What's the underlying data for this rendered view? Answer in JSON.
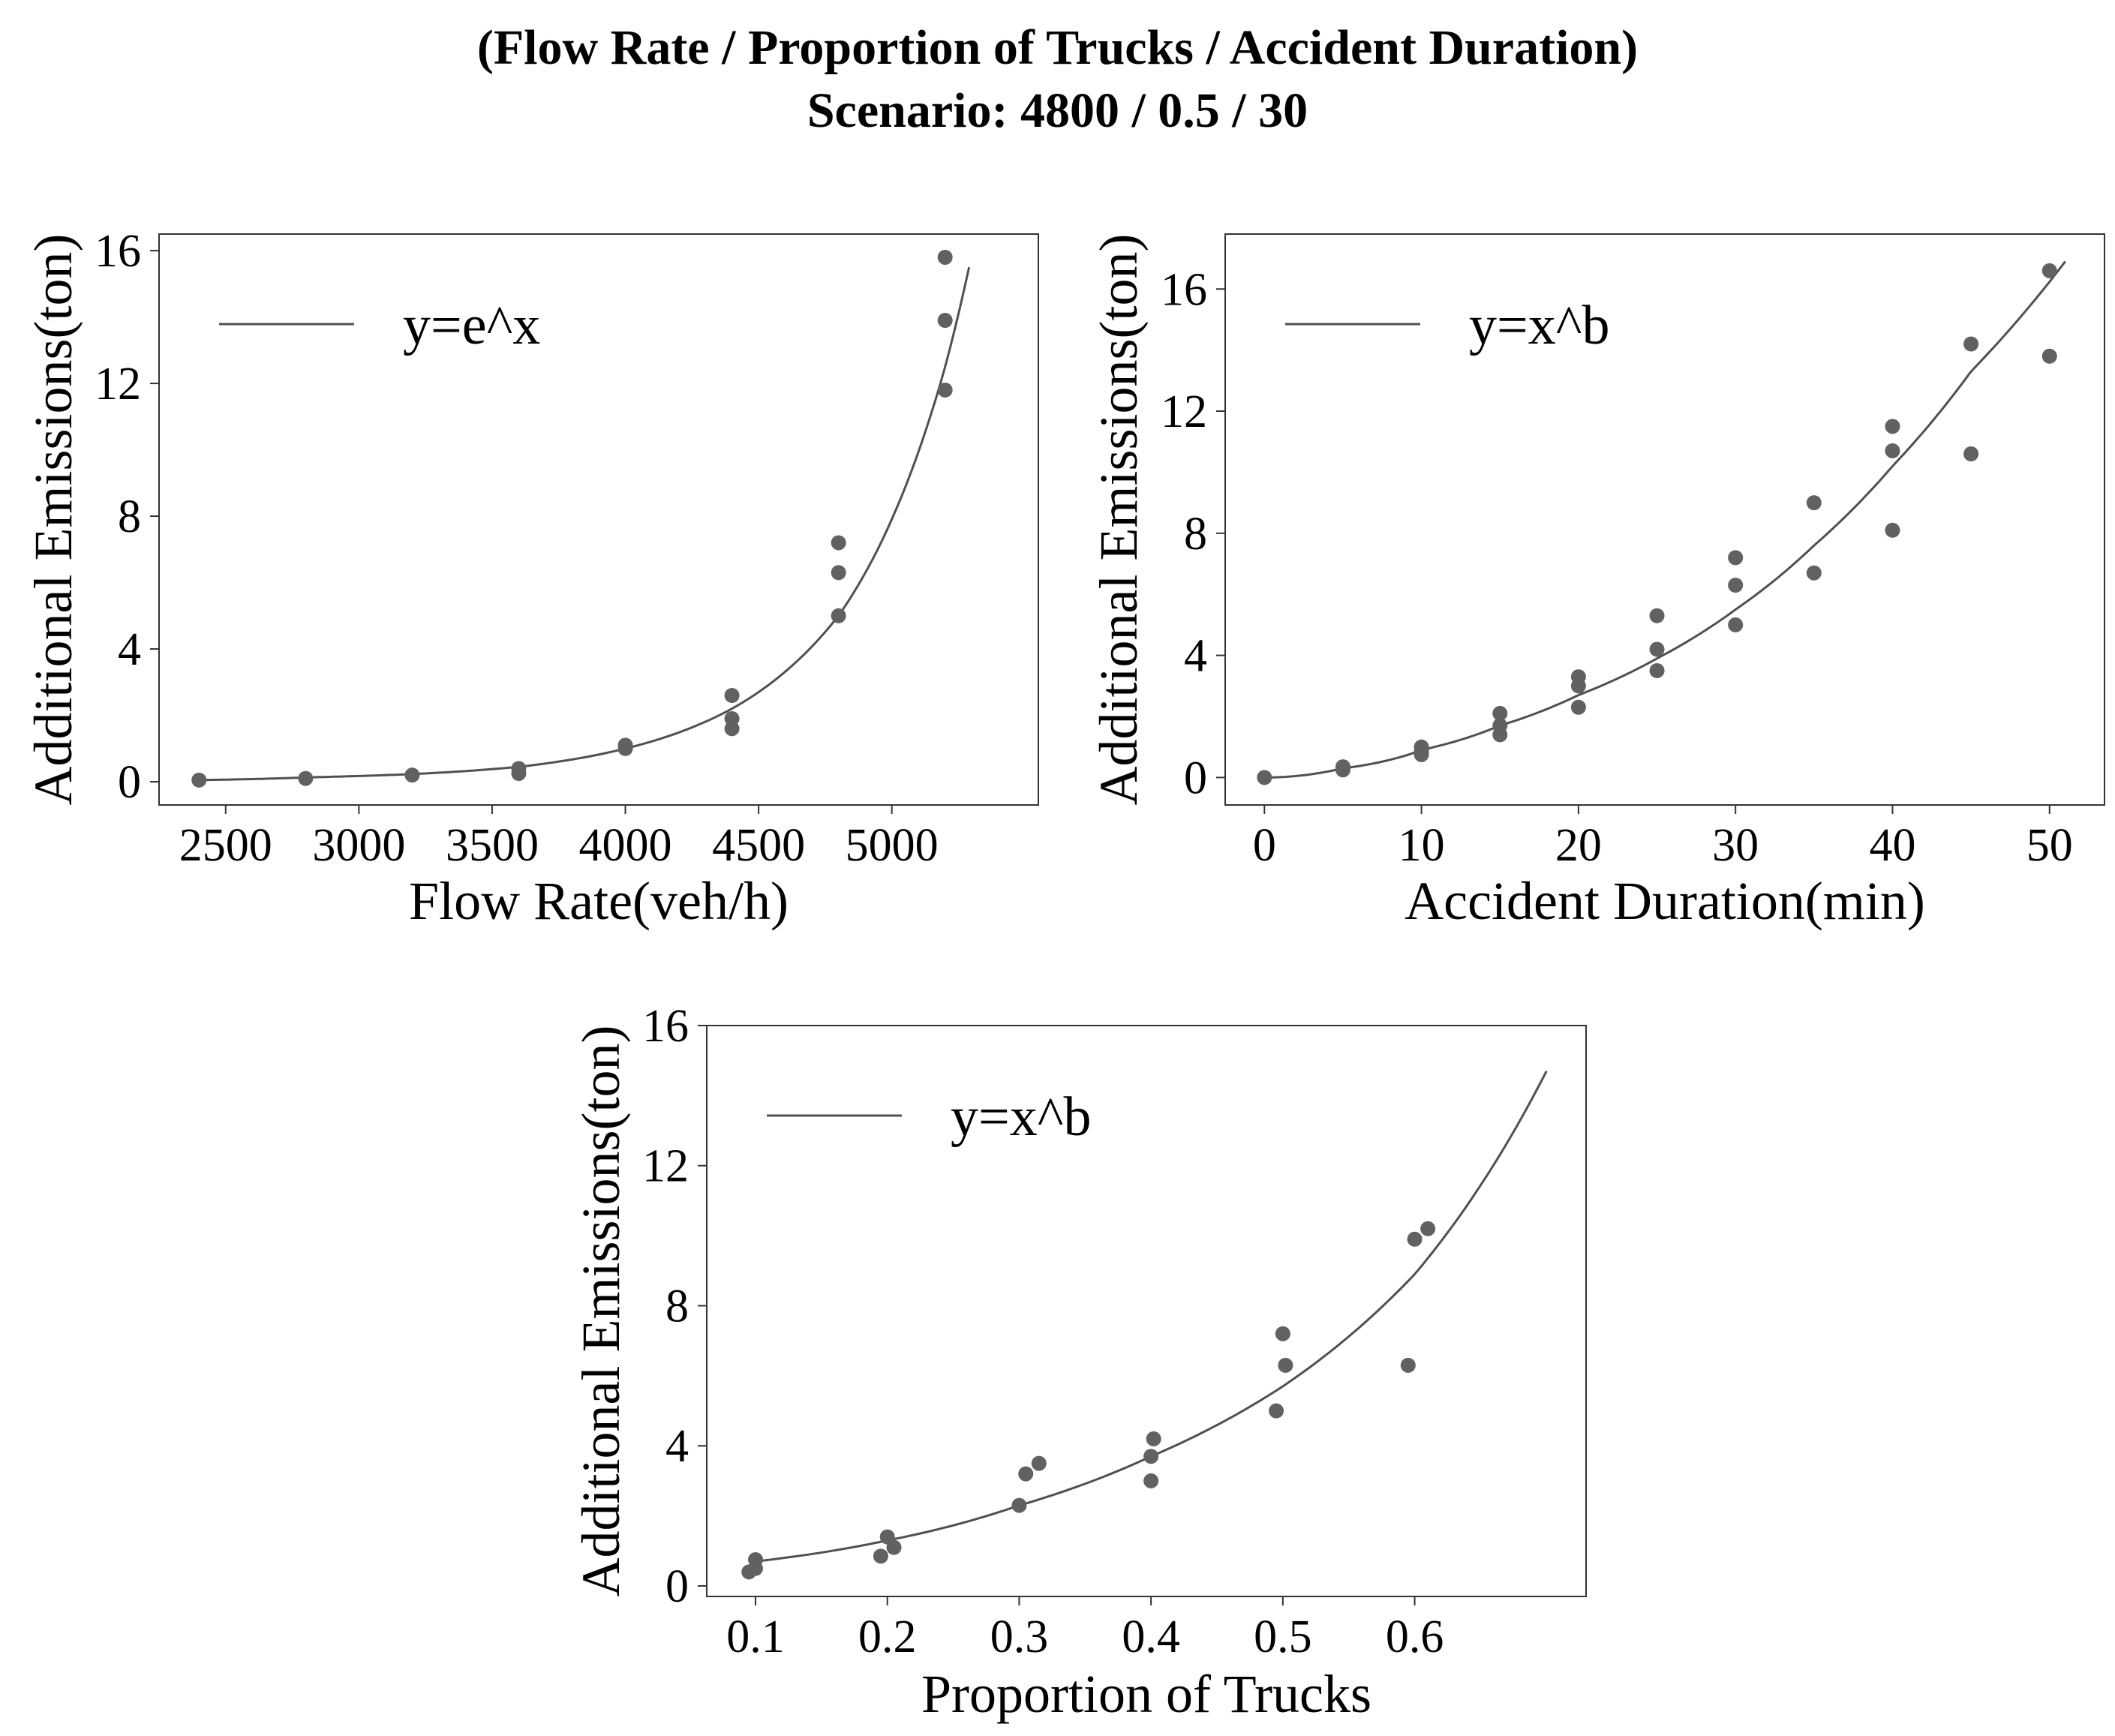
{
  "title": {
    "line1": "(Flow Rate / Proportion of Trucks / Accident Duration)",
    "line2": "Scenario: 4800 / 0.5 / 30"
  },
  "colors": {
    "points": "#616161",
    "curve": "#505050",
    "frame": "#333333"
  },
  "chart_data": [
    {
      "type": "scatter",
      "xlabel": "Flow Rate(veh/h)",
      "ylabel": "Additional Emissions(ton)",
      "xlim": [
        2250,
        5550
      ],
      "ylim": [
        -0.7,
        16.5
      ],
      "xticks": [
        2500,
        3000,
        3500,
        4000,
        4500,
        5000
      ],
      "yticks": [
        0,
        4,
        8,
        12,
        16
      ],
      "legend": {
        "label": "y=e^x",
        "placement": "upper-left"
      },
      "fit": {
        "form": "exponential",
        "x": [
          2400,
          2800,
          3200,
          3600,
          4000,
          4400,
          4800,
          5200,
          5290
        ],
        "y": [
          0.05,
          0.13,
          0.23,
          0.45,
          1.0,
          2.2,
          5.0,
          12.5,
          15.5
        ]
      },
      "points": [
        {
          "x": 2400,
          "y": 0.05
        },
        {
          "x": 2800,
          "y": 0.1
        },
        {
          "x": 3200,
          "y": 0.2
        },
        {
          "x": 3600,
          "y": 0.25
        },
        {
          "x": 3600,
          "y": 0.4
        },
        {
          "x": 4000,
          "y": 1.0
        },
        {
          "x": 4000,
          "y": 1.1
        },
        {
          "x": 4400,
          "y": 1.6
        },
        {
          "x": 4400,
          "y": 1.9
        },
        {
          "x": 4400,
          "y": 2.6
        },
        {
          "x": 4800,
          "y": 5.0
        },
        {
          "x": 4800,
          "y": 6.3
        },
        {
          "x": 4800,
          "y": 7.2
        },
        {
          "x": 5200,
          "y": 11.8
        },
        {
          "x": 5200,
          "y": 13.9
        },
        {
          "x": 5200,
          "y": 15.8
        }
      ]
    },
    {
      "type": "scatter",
      "xlabel": "Accident Duration(min)",
      "ylabel": "Additional Emissions(ton)",
      "xlim": [
        -2.5,
        53.5
      ],
      "ylim": [
        -0.9,
        17.8
      ],
      "xticks": [
        0,
        10,
        20,
        30,
        40,
        50
      ],
      "yticks": [
        0,
        4,
        8,
        12,
        16
      ],
      "legend": {
        "label": "y=x^b",
        "placement": "upper-left"
      },
      "fit": {
        "form": "power",
        "x": [
          0,
          5,
          10,
          15,
          20,
          25,
          30,
          35,
          40,
          45,
          51
        ],
        "y": [
          0,
          0.3,
          0.9,
          1.7,
          2.7,
          3.9,
          5.5,
          7.6,
          10.2,
          13.3,
          16.9
        ]
      },
      "points": [
        {
          "x": 0,
          "y": 0
        },
        {
          "x": 5,
          "y": 0.25
        },
        {
          "x": 5,
          "y": 0.35
        },
        {
          "x": 10,
          "y": 0.75
        },
        {
          "x": 10,
          "y": 0.85
        },
        {
          "x": 10,
          "y": 1.0
        },
        {
          "x": 15,
          "y": 1.4
        },
        {
          "x": 15,
          "y": 1.7
        },
        {
          "x": 15,
          "y": 2.1
        },
        {
          "x": 20,
          "y": 2.3
        },
        {
          "x": 20,
          "y": 3.0
        },
        {
          "x": 20,
          "y": 3.3
        },
        {
          "x": 25,
          "y": 3.5
        },
        {
          "x": 25,
          "y": 4.2
        },
        {
          "x": 25,
          "y": 5.3
        },
        {
          "x": 30,
          "y": 5.0
        },
        {
          "x": 30,
          "y": 6.3
        },
        {
          "x": 30,
          "y": 7.2
        },
        {
          "x": 35,
          "y": 6.7
        },
        {
          "x": 35,
          "y": 9.0
        },
        {
          "x": 40,
          "y": 8.1
        },
        {
          "x": 40,
          "y": 10.7
        },
        {
          "x": 40,
          "y": 11.5
        },
        {
          "x": 45,
          "y": 10.6
        },
        {
          "x": 45,
          "y": 14.2
        },
        {
          "x": 50,
          "y": 13.8
        },
        {
          "x": 50,
          "y": 16.6
        }
      ]
    },
    {
      "type": "scatter",
      "xlabel": "Proportion of Trucks",
      "ylabel": "Additional Emissions(ton)",
      "xlim": [
        0.063,
        0.73
      ],
      "ylim": [
        -0.3,
        16.0
      ],
      "xticks": [
        0.1,
        0.2,
        0.3,
        0.4,
        0.5,
        0.6
      ],
      "yticks": [
        0,
        4,
        8,
        12,
        16
      ],
      "legend": {
        "label": "y=x^b",
        "placement": "upper-left"
      },
      "fit": {
        "form": "power",
        "x": [
          0.1,
          0.2,
          0.3,
          0.4,
          0.5,
          0.6,
          0.7
        ],
        "y": [
          0.7,
          1.3,
          2.3,
          3.7,
          5.7,
          8.9,
          14.7
        ]
      },
      "points": [
        {
          "x": 0.095,
          "y": 0.4
        },
        {
          "x": 0.1,
          "y": 0.5
        },
        {
          "x": 0.1,
          "y": 0.75
        },
        {
          "x": 0.195,
          "y": 0.85
        },
        {
          "x": 0.2,
          "y": 1.4
        },
        {
          "x": 0.205,
          "y": 1.1
        },
        {
          "x": 0.3,
          "y": 2.3
        },
        {
          "x": 0.305,
          "y": 3.2
        },
        {
          "x": 0.315,
          "y": 3.5
        },
        {
          "x": 0.4,
          "y": 3.0
        },
        {
          "x": 0.4,
          "y": 3.7
        },
        {
          "x": 0.402,
          "y": 4.2
        },
        {
          "x": 0.495,
          "y": 5.0
        },
        {
          "x": 0.5,
          "y": 7.2
        },
        {
          "x": 0.502,
          "y": 6.3
        },
        {
          "x": 0.595,
          "y": 6.3
        },
        {
          "x": 0.6,
          "y": 9.9
        },
        {
          "x": 0.61,
          "y": 10.2
        }
      ]
    }
  ]
}
